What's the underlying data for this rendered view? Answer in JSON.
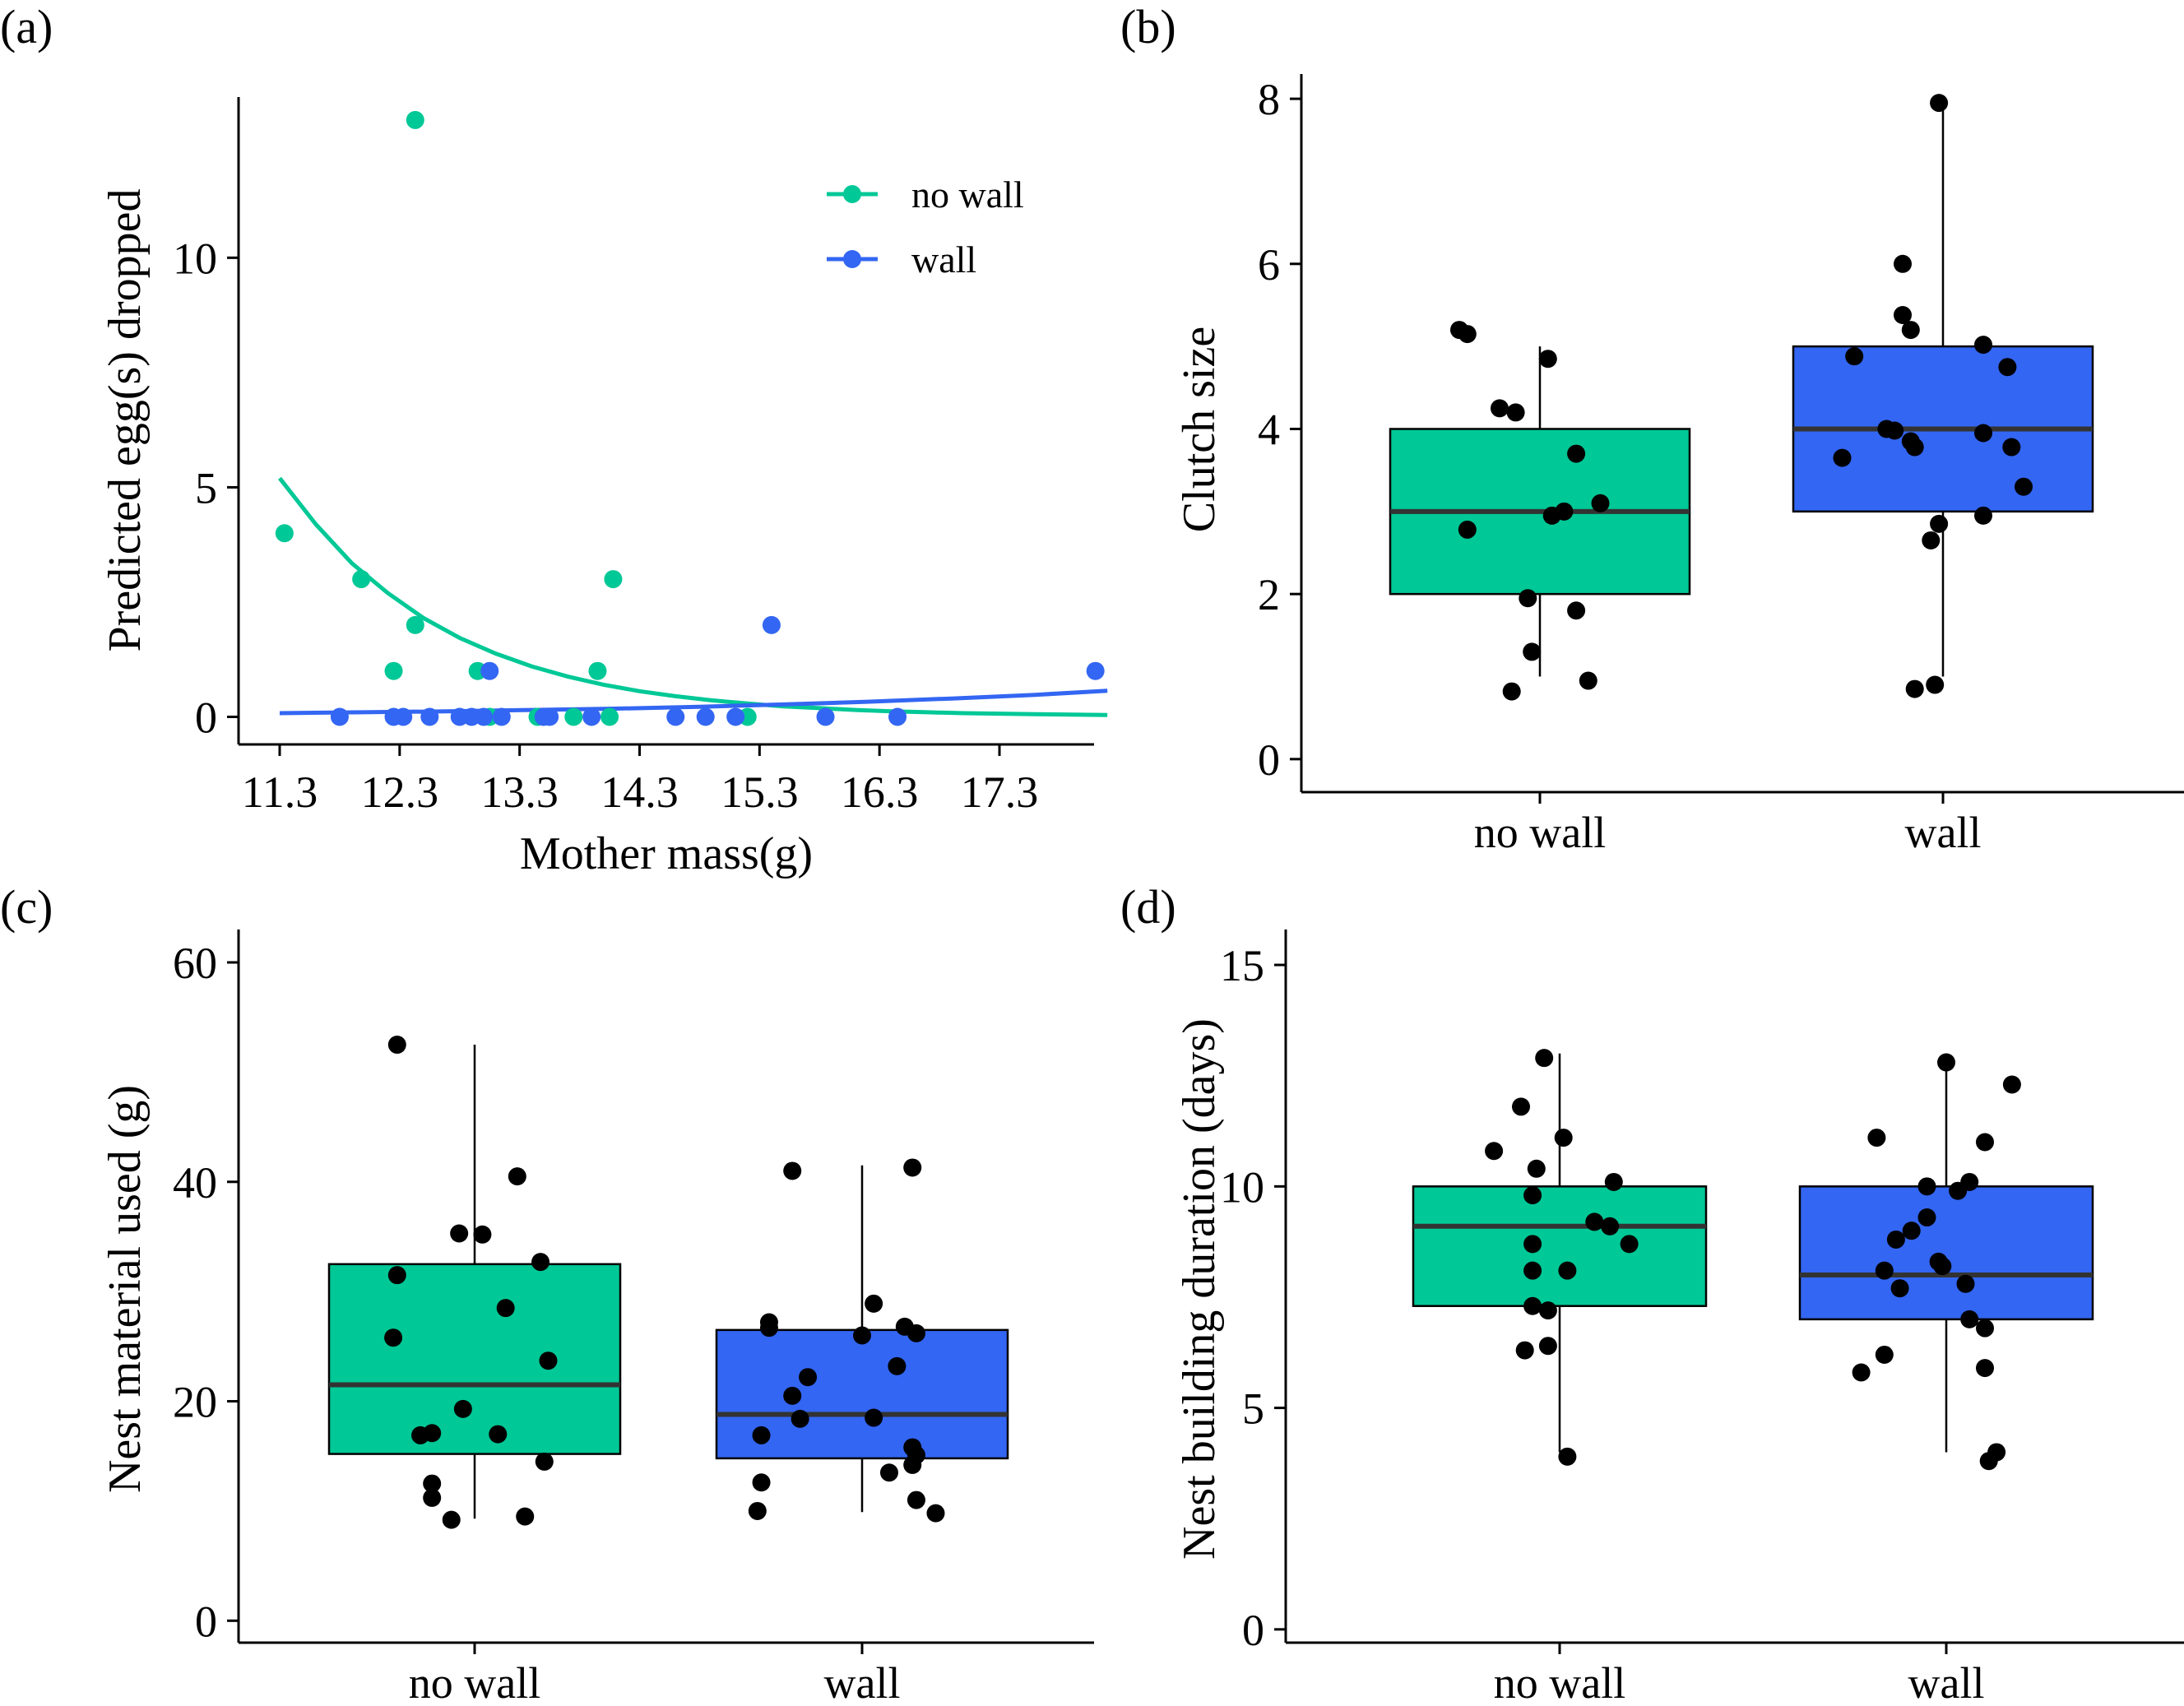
{
  "colors": {
    "no_wall": "#00C896",
    "wall": "#3366F2",
    "point": "#000000"
  },
  "chart_data": [
    {
      "panel": "(a)",
      "type": "scatter",
      "xlabel": "Mother mass(g)",
      "ylabel": "Predicted egg(s) dropped",
      "xlim": [
        11.2,
        18.5
      ],
      "ylim": [
        -0.6,
        13.5
      ],
      "xticks": [
        11.3,
        12.3,
        13.3,
        14.3,
        15.3,
        16.3,
        17.3
      ],
      "xtick_labels": [
        "11.3",
        "12.3",
        "13.3",
        "14.3",
        "15.3",
        "16.3",
        "17.3"
      ],
      "yticks": [
        0,
        5,
        10
      ],
      "ytick_labels": [
        "0",
        "5",
        "10"
      ],
      "legend_position": "top-right",
      "series": [
        {
          "name": "no wall",
          "color_key": "no_wall",
          "points": [
            [
              11.34,
              4
            ],
            [
              11.98,
              3
            ],
            [
              12.25,
              1
            ],
            [
              12.43,
              13
            ],
            [
              12.43,
              2
            ],
            [
              12.95,
              1
            ],
            [
              13.05,
              0
            ],
            [
              13.45,
              0
            ],
            [
              13.75,
              0
            ],
            [
              13.95,
              1
            ],
            [
              14.05,
              0
            ],
            [
              14.08,
              3
            ],
            [
              15.2,
              0
            ]
          ],
          "curve": [
            [
              11.3,
              5.2
            ],
            [
              11.6,
              4.2
            ],
            [
              11.9,
              3.35
            ],
            [
              12.2,
              2.7
            ],
            [
              12.5,
              2.15
            ],
            [
              12.8,
              1.72
            ],
            [
              13.1,
              1.38
            ],
            [
              13.4,
              1.1
            ],
            [
              13.7,
              0.88
            ],
            [
              14.0,
              0.7
            ],
            [
              14.3,
              0.56
            ],
            [
              14.6,
              0.45
            ],
            [
              14.9,
              0.36
            ],
            [
              15.2,
              0.29
            ],
            [
              15.5,
              0.23
            ],
            [
              15.8,
              0.19
            ],
            [
              16.1,
              0.15
            ],
            [
              16.4,
              0.12
            ],
            [
              16.7,
              0.1
            ],
            [
              17.0,
              0.08
            ],
            [
              17.3,
              0.07
            ],
            [
              17.6,
              0.06
            ],
            [
              17.9,
              0.05
            ],
            [
              18.2,
              0.04
            ]
          ]
        },
        {
          "name": "wall",
          "color_key": "wall",
          "points": [
            [
              11.8,
              0
            ],
            [
              12.25,
              0
            ],
            [
              12.33,
              0
            ],
            [
              12.55,
              0
            ],
            [
              12.8,
              0
            ],
            [
              12.9,
              0
            ],
            [
              13.0,
              0
            ],
            [
              13.05,
              1
            ],
            [
              13.15,
              0
            ],
            [
              13.5,
              0
            ],
            [
              13.55,
              0
            ],
            [
              13.9,
              0
            ],
            [
              14.6,
              0
            ],
            [
              14.85,
              0
            ],
            [
              15.1,
              0
            ],
            [
              15.4,
              2
            ],
            [
              15.85,
              0
            ],
            [
              16.45,
              0
            ],
            [
              18.1,
              1
            ]
          ],
          "curve": [
            [
              11.3,
              0.08
            ],
            [
              12.0,
              0.1
            ],
            [
              12.7,
              0.12
            ],
            [
              13.4,
              0.15
            ],
            [
              14.1,
              0.18
            ],
            [
              14.8,
              0.22
            ],
            [
              15.5,
              0.27
            ],
            [
              16.2,
              0.33
            ],
            [
              16.9,
              0.4
            ],
            [
              17.6,
              0.48
            ],
            [
              18.2,
              0.57
            ]
          ]
        }
      ]
    },
    {
      "panel": "(b)",
      "type": "box",
      "xlabel": "",
      "ylabel": "Clutch size",
      "ylim": [
        -0.4,
        8.3
      ],
      "yticks": [
        0,
        2,
        4,
        6,
        8
      ],
      "ytick_labels": [
        "0",
        "2",
        "4",
        "6",
        "8"
      ],
      "categories": [
        "no wall",
        "wall"
      ],
      "boxes": [
        {
          "color_key": "no_wall",
          "whisker_low": 1,
          "q1": 2,
          "median": 3,
          "q3": 4,
          "whisker_high": 5
        },
        {
          "color_key": "wall",
          "whisker_low": 1,
          "q1": 3,
          "median": 4,
          "q3": 5,
          "whisker_high": 8
        }
      ],
      "points": [
        [
          [
            -0.2,
            5.2
          ],
          [
            -0.18,
            5.15
          ],
          [
            -0.1,
            4.25
          ],
          [
            -0.06,
            4.2
          ],
          [
            0.02,
            4.85
          ],
          [
            0.09,
            3.7
          ],
          [
            -0.18,
            2.78
          ],
          [
            0.03,
            2.95
          ],
          [
            0.06,
            3.0
          ],
          [
            0.15,
            3.1
          ],
          [
            -0.03,
            1.95
          ],
          [
            0.09,
            1.8
          ],
          [
            -0.02,
            1.3
          ],
          [
            -0.07,
            0.82
          ],
          [
            0.12,
            0.95
          ]
        ],
        [
          [
            -0.01,
            7.95
          ],
          [
            -0.1,
            6.0
          ],
          [
            -0.1,
            5.38
          ],
          [
            -0.08,
            5.2
          ],
          [
            -0.22,
            4.88
          ],
          [
            0.1,
            5.02
          ],
          [
            0.16,
            4.75
          ],
          [
            -0.14,
            4.0
          ],
          [
            -0.12,
            3.98
          ],
          [
            -0.08,
            3.85
          ],
          [
            0.1,
            3.95
          ],
          [
            0.17,
            3.78
          ],
          [
            -0.25,
            3.65
          ],
          [
            -0.07,
            3.78
          ],
          [
            0.2,
            3.3
          ],
          [
            0.1,
            2.95
          ],
          [
            -0.01,
            2.85
          ],
          [
            -0.03,
            2.65
          ],
          [
            -0.07,
            0.85
          ],
          [
            -0.02,
            0.9
          ]
        ]
      ]
    },
    {
      "panel": "(c)",
      "type": "box",
      "xlabel": "",
      "ylabel": "Nest material used (g)",
      "ylim": [
        -2,
        63
      ],
      "yticks": [
        0,
        20,
        40,
        60
      ],
      "ytick_labels": [
        "0",
        "20",
        "40",
        "60"
      ],
      "categories": [
        "no wall",
        "wall"
      ],
      "boxes": [
        {
          "color_key": "no_wall",
          "whisker_low": 9.3,
          "q1": 15.2,
          "median": 21.5,
          "q3": 32.5,
          "whisker_high": 52.5
        },
        {
          "color_key": "wall",
          "whisker_low": 9.9,
          "q1": 14.8,
          "median": 18.8,
          "q3": 26.5,
          "whisker_high": 41.5
        }
      ],
      "points": [
        [
          [
            -0.2,
            52.5
          ],
          [
            0.11,
            40.5
          ],
          [
            -0.04,
            35.3
          ],
          [
            0.02,
            35.2
          ],
          [
            0.17,
            32.7
          ],
          [
            -0.2,
            31.5
          ],
          [
            0.08,
            28.5
          ],
          [
            -0.21,
            25.8
          ],
          [
            0.19,
            23.7
          ],
          [
            -0.03,
            19.3
          ],
          [
            -0.14,
            16.9
          ],
          [
            -0.11,
            17.1
          ],
          [
            0.06,
            17.0
          ],
          [
            0.18,
            14.5
          ],
          [
            -0.11,
            12.5
          ],
          [
            -0.11,
            11.2
          ],
          [
            -0.06,
            9.2
          ],
          [
            0.13,
            9.5
          ]
        ],
        [
          [
            -0.18,
            41.0
          ],
          [
            0.13,
            41.3
          ],
          [
            0.03,
            28.9
          ],
          [
            -0.24,
            27.2
          ],
          [
            -0.24,
            26.7
          ],
          [
            0.11,
            26.8
          ],
          [
            0.14,
            26.2
          ],
          [
            0.0,
            26.0
          ],
          [
            -0.14,
            22.2
          ],
          [
            0.09,
            23.2
          ],
          [
            -0.18,
            20.5
          ],
          [
            -0.16,
            18.4
          ],
          [
            0.03,
            18.5
          ],
          [
            0.13,
            15.8
          ],
          [
            0.14,
            15.1
          ],
          [
            -0.26,
            16.9
          ],
          [
            0.07,
            13.5
          ],
          [
            0.13,
            14.2
          ],
          [
            -0.26,
            12.6
          ],
          [
            0.14,
            11.0
          ],
          [
            -0.27,
            10.0
          ],
          [
            0.19,
            9.8
          ]
        ]
      ]
    },
    {
      "panel": "(d)",
      "type": "box",
      "xlabel": "",
      "ylabel": "Nest building duration (days)",
      "ylim": [
        -0.3,
        15.8
      ],
      "yticks": [
        0,
        5,
        10,
        15
      ],
      "ytick_labels": [
        "0",
        "5",
        "10",
        "15"
      ],
      "categories": [
        "no wall",
        "wall"
      ],
      "boxes": [
        {
          "color_key": "no_wall",
          "whisker_low": 4.0,
          "q1": 7.3,
          "median": 9.1,
          "q3": 10.0,
          "whisker_high": 13.0
        },
        {
          "color_key": "wall",
          "whisker_low": 4.0,
          "q1": 7.0,
          "median": 8.0,
          "q3": 10.0,
          "whisker_high": 13.0
        }
      ],
      "points": [
        [
          [
            -0.04,
            12.9
          ],
          [
            -0.1,
            11.8
          ],
          [
            0.01,
            11.1
          ],
          [
            -0.17,
            10.8
          ],
          [
            -0.06,
            10.4
          ],
          [
            0.14,
            10.1
          ],
          [
            -0.07,
            9.8
          ],
          [
            0.09,
            9.2
          ],
          [
            0.13,
            9.1
          ],
          [
            0.18,
            8.7
          ],
          [
            -0.07,
            8.7
          ],
          [
            -0.07,
            8.1
          ],
          [
            0.02,
            8.1
          ],
          [
            -0.07,
            7.3
          ],
          [
            -0.03,
            7.2
          ],
          [
            -0.09,
            6.3
          ],
          [
            -0.03,
            6.4
          ],
          [
            0.02,
            3.9
          ]
        ],
        [
          [
            0.0,
            12.8
          ],
          [
            0.17,
            12.3
          ],
          [
            -0.18,
            11.1
          ],
          [
            0.1,
            11.0
          ],
          [
            -0.05,
            10.0
          ],
          [
            0.03,
            9.9
          ],
          [
            0.06,
            10.1
          ],
          [
            -0.05,
            9.3
          ],
          [
            -0.09,
            9.0
          ],
          [
            -0.13,
            8.8
          ],
          [
            -0.02,
            8.3
          ],
          [
            -0.16,
            8.1
          ],
          [
            -0.01,
            8.2
          ],
          [
            0.05,
            7.8
          ],
          [
            -0.12,
            7.7
          ],
          [
            0.06,
            7.0
          ],
          [
            0.1,
            6.8
          ],
          [
            -0.16,
            6.2
          ],
          [
            0.1,
            5.9
          ],
          [
            -0.22,
            5.8
          ],
          [
            0.13,
            4.0
          ],
          [
            0.11,
            3.8
          ]
        ]
      ]
    }
  ]
}
